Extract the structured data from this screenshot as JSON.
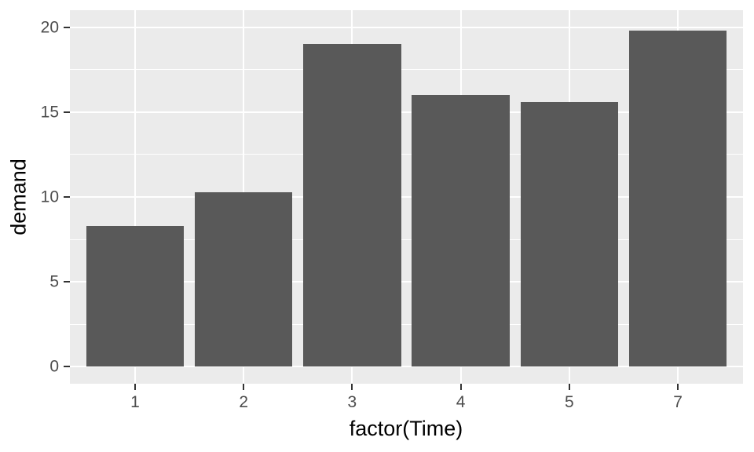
{
  "chart_data": {
    "type": "bar",
    "title": "",
    "xlabel": "factor(Time)",
    "ylabel": "demand",
    "categories": [
      "1",
      "2",
      "3",
      "4",
      "5",
      "7"
    ],
    "values": [
      8.3,
      10.3,
      19.0,
      16.0,
      15.6,
      19.8
    ],
    "ylim": [
      -1,
      21
    ],
    "yticks": [
      0,
      5,
      10,
      15,
      20
    ],
    "ytick_labels": [
      "0",
      "5",
      "10",
      "15",
      "20"
    ],
    "yticks_minor": [
      2.5,
      7.5,
      12.5,
      17.5
    ],
    "grid": "major-and-minor-horizontal, major-vertical-at-categories",
    "legend": "none",
    "bar_relative_width": 0.9,
    "x_expand_units": 0.6,
    "colors": {
      "bar_fill": "#595959",
      "panel_background": "#EBEBEB",
      "gridline": "#FFFFFF",
      "tick_label": "#4D4D4D",
      "tick_mark": "#333333",
      "axis_title": "#000000",
      "figure_background": "#FFFFFF"
    }
  }
}
